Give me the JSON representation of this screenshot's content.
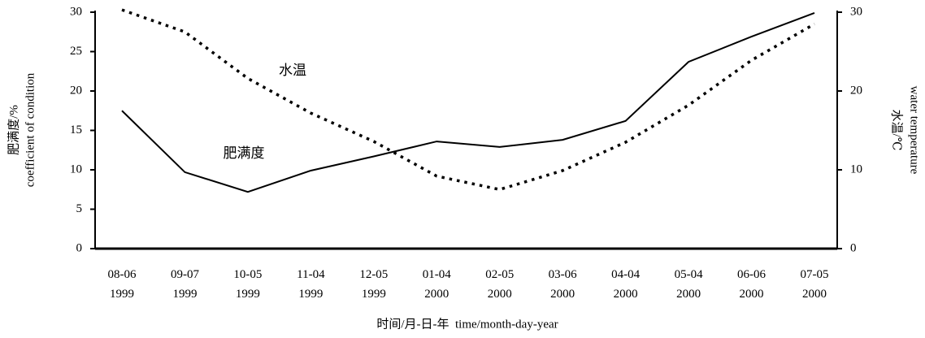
{
  "chart_data": {
    "type": "line",
    "categories": [
      "08-06\n1999",
      "09-07\n1999",
      "10-05\n1999",
      "11-04\n1999",
      "12-05\n1999",
      "01-04\n2000",
      "02-05\n2000",
      "03-06\n2000",
      "04-04\n2000",
      "05-04\n2000",
      "06-06\n2000",
      "07-05\n2000"
    ],
    "series": [
      {
        "name": "肥满度",
        "color": "#000000",
        "style": "solid",
        "values": [
          17.5,
          9.7,
          7.2,
          9.9,
          11.7,
          13.6,
          12.9,
          13.8,
          16.2,
          23.7,
          26.9,
          29.9
        ]
      },
      {
        "name": "水温",
        "color": "#000000",
        "style": "dotted",
        "axis": "y2",
        "values": [
          30.3,
          27.5,
          21.6,
          17.2,
          13.6,
          9.2,
          7.5,
          9.9,
          13.5,
          18.2,
          23.9,
          28.5
        ]
      }
    ],
    "ylim": [
      0,
      30
    ],
    "yticks": [
      0,
      5,
      10,
      15,
      20,
      25,
      30
    ],
    "y2lim": [
      0,
      30
    ],
    "y2ticks": [
      0,
      10,
      20,
      30
    ],
    "ylabel": [
      "肥满度/%",
      "coefficient of condition"
    ],
    "y2label": [
      "水温/℃",
      "water temperature"
    ],
    "xlabel": "时间/月-日-年  time/month-day-year"
  }
}
